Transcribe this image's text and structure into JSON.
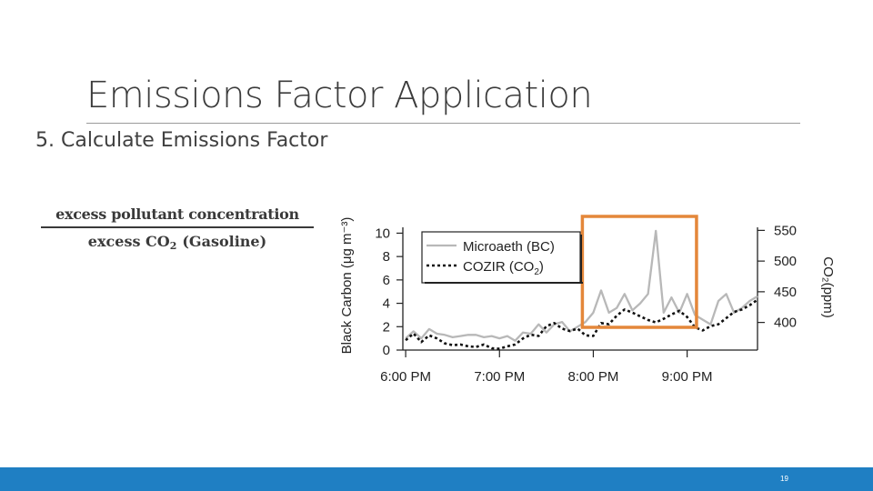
{
  "slide": {
    "title": "Emissions Factor Application",
    "heading": "5. Calculate Emissions Factor",
    "formula": {
      "numerator": "excess pollutant concentration",
      "denominator_prefix": "excess CO",
      "denominator_sub": "2",
      "denominator_suffix": "(Gasoline)"
    },
    "page_number": "19"
  },
  "colors": {
    "title": "#3b3b3b",
    "bc_series": "#b8b8b8",
    "co2_series": "#111111",
    "highlight_box": "#e4873a",
    "footer": "#1f7fc3"
  },
  "chart_data": {
    "type": "line",
    "ylabel_left": "Black Carbon (μg m⁻³)",
    "ylabel_right": "CO₂(ppm)",
    "xticks": [
      "6:00 PM",
      "7:00 PM",
      "8:00 PM",
      "9:00 PM"
    ],
    "yticks_left": [
      "0",
      "2",
      "4",
      "6",
      "8",
      "10"
    ],
    "yticks_right": [
      "400",
      "450",
      "500",
      "550"
    ],
    "ylim_left": [
      0,
      10.5
    ],
    "ylim_right": [
      355,
      555
    ],
    "xlim_hours": [
      17.97,
      21.75
    ],
    "legend": {
      "position": "top-left",
      "bc": "Microaeth (BC)",
      "co2_prefix": "COZIR (CO",
      "co2_sub": "2",
      "co2_suffix": ")"
    },
    "highlight_window": [
      "7:53 PM",
      "9:06 PM"
    ],
    "series": [
      {
        "name": "Microaeth (BC)",
        "axis": "left",
        "style": "solid",
        "x": [
          "6:00 PM",
          "6:05 PM",
          "6:10 PM",
          "6:15 PM",
          "6:20 PM",
          "6:25 PM",
          "6:30 PM",
          "6:35 PM",
          "6:40 PM",
          "6:45 PM",
          "6:50 PM",
          "6:55 PM",
          "7:00 PM",
          "7:05 PM",
          "7:10 PM",
          "7:15 PM",
          "7:20 PM",
          "7:25 PM",
          "7:30 PM",
          "7:35 PM",
          "7:40 PM",
          "7:45 PM",
          "7:50 PM",
          "7:55 PM",
          "8:00 PM",
          "8:05 PM",
          "8:10 PM",
          "8:15 PM",
          "8:20 PM",
          "8:25 PM",
          "8:30 PM",
          "8:35 PM",
          "8:40 PM",
          "8:45 PM",
          "8:50 PM",
          "8:55 PM",
          "9:00 PM",
          "9:05 PM",
          "9:10 PM",
          "9:15 PM",
          "9:20 PM",
          "9:25 PM",
          "9:30 PM",
          "9:35 PM",
          "9:40 PM",
          "9:45 PM"
        ],
        "y": [
          1.0,
          1.6,
          1.0,
          1.8,
          1.4,
          1.3,
          1.1,
          1.2,
          1.3,
          1.3,
          1.1,
          1.2,
          1.0,
          1.2,
          0.8,
          1.5,
          1.4,
          2.2,
          1.5,
          2.2,
          2.4,
          1.6,
          2.0,
          2.4,
          3.2,
          5.1,
          3.2,
          3.6,
          4.8,
          3.4,
          4.0,
          4.8,
          10.2,
          3.2,
          4.5,
          3.2,
          4.8,
          3.0,
          2.6,
          2.2,
          4.2,
          4.8,
          3.2,
          3.6,
          4.2,
          4.6
        ]
      },
      {
        "name": "COZIR (CO2)",
        "axis": "right",
        "style": "dotted",
        "x": [
          "6:00 PM",
          "6:05 PM",
          "6:10 PM",
          "6:15 PM",
          "6:20 PM",
          "6:25 PM",
          "6:30 PM",
          "6:35 PM",
          "6:40 PM",
          "6:45 PM",
          "6:50 PM",
          "6:55 PM",
          "7:00 PM",
          "7:05 PM",
          "7:10 PM",
          "7:15 PM",
          "7:20 PM",
          "7:25 PM",
          "7:30 PM",
          "7:35 PM",
          "7:40 PM",
          "7:45 PM",
          "7:50 PM",
          "7:55 PM",
          "8:00 PM",
          "8:05 PM",
          "8:10 PM",
          "8:15 PM",
          "8:20 PM",
          "8:25 PM",
          "8:30 PM",
          "8:35 PM",
          "8:40 PM",
          "8:45 PM",
          "8:50 PM",
          "8:55 PM",
          "9:00 PM",
          "9:05 PM",
          "9:10 PM",
          "9:15 PM",
          "9:20 PM",
          "9:25 PM",
          "9:30 PM",
          "9:35 PM",
          "9:40 PM",
          "9:45 PM"
        ],
        "y": [
          371,
          382,
          368,
          379,
          374,
          366,
          363,
          364,
          361,
          360,
          364,
          358,
          357,
          361,
          364,
          374,
          380,
          378,
          394,
          399,
          390,
          386,
          390,
          379,
          378,
          399,
          397,
          411,
          421,
          416,
          410,
          404,
          400,
          406,
          413,
          419,
          409,
          392,
          387,
          394,
          397,
          407,
          417,
          421,
          428,
          437
        ]
      }
    ]
  }
}
